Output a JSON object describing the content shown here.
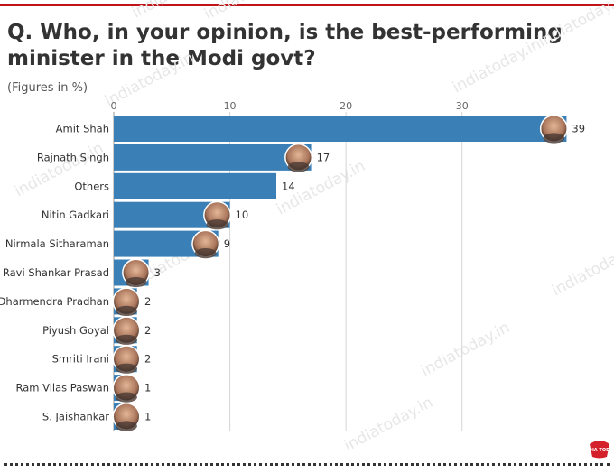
{
  "title": "Q. Who, in your opinion, is the best-performing minister in the Modi govt?",
  "subtitle": "(Figures in %)",
  "watermark": "indiatoday.in",
  "logo_text": "INDIA TODAY",
  "colors": {
    "bar": "#3a80b6",
    "grid": "#d6d6d6",
    "rule": "#c0141b",
    "text": "#333333"
  },
  "chart_data": {
    "type": "bar",
    "orientation": "horizontal",
    "title": "Q. Who, in your opinion, is the best-performing minister in the Modi govt?",
    "subtitle": "(Figures in %)",
    "categories": [
      "Amit Shah",
      "Rajnath Singh",
      "Others",
      "Nitin Gadkari",
      "Nirmala Sitharaman",
      "Ravi Shankar Prasad",
      "Dharmendra Pradhan",
      "Piyush Goyal",
      "Smriti Irani",
      "Ram Vilas Paswan",
      "S. Jaishankar"
    ],
    "values": [
      39,
      17,
      14,
      10,
      9,
      3,
      2,
      2,
      2,
      1,
      1
    ],
    "has_photo": [
      true,
      true,
      false,
      true,
      true,
      true,
      true,
      true,
      true,
      true,
      true
    ],
    "x_ticks": [
      0,
      10,
      20,
      30
    ],
    "xlim": [
      0,
      42
    ],
    "grid": true,
    "xlabel": "",
    "ylabel": ""
  }
}
